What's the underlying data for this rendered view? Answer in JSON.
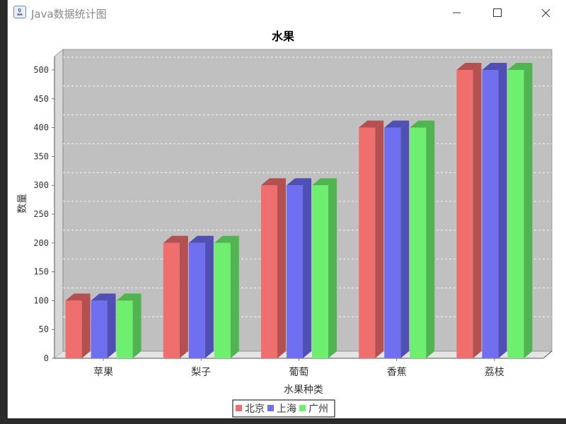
{
  "window": {
    "title": "Java数据统计图"
  },
  "colors": {
    "series": [
      "#ef6f6f",
      "#6f6fef",
      "#6fef6f"
    ],
    "series_side": [
      "#b45050",
      "#5050b4",
      "#50b450"
    ],
    "plot_bg": "#c0c0c0",
    "grid": "#ffffff"
  },
  "chart_data": {
    "type": "bar",
    "title": "水果",
    "xlabel": "水果种类",
    "ylabel": "数量",
    "categories": [
      "苹果",
      "梨子",
      "葡萄",
      "香蕉",
      "荔枝"
    ],
    "series": [
      {
        "name": "北京",
        "values": [
          100,
          200,
          300,
          400,
          500
        ]
      },
      {
        "name": "上海",
        "values": [
          100,
          200,
          300,
          400,
          500
        ]
      },
      {
        "name": "广州",
        "values": [
          100,
          200,
          300,
          400,
          500
        ]
      }
    ],
    "ylim": [
      0,
      500
    ],
    "yticks": [
      0,
      50,
      100,
      150,
      200,
      250,
      300,
      350,
      400,
      450,
      500
    ],
    "grid": true,
    "legend_position": "bottom",
    "style": "3d"
  }
}
